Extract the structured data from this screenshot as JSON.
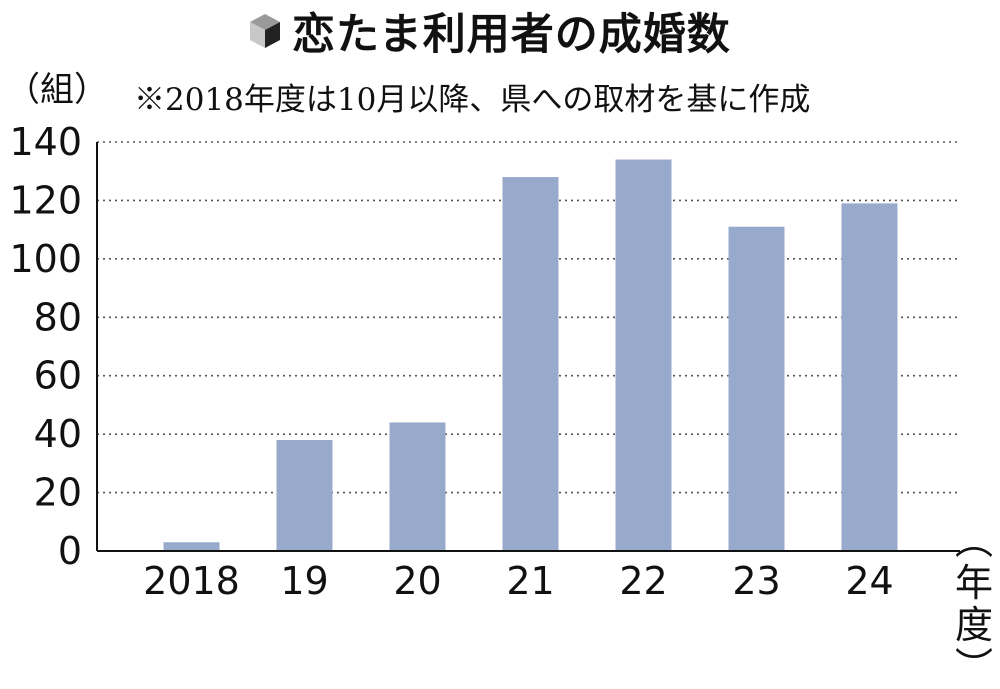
{
  "chart_data": {
    "type": "bar",
    "title": "恋たま利用者の成婚数",
    "subtitle": "※2018年度は10月以降、県への取材を基に作成",
    "ylabel": "（組）",
    "xlabel": "（年度）",
    "categories": [
      "2018",
      "19",
      "20",
      "21",
      "22",
      "23",
      "24"
    ],
    "values": [
      3,
      38,
      44,
      128,
      134,
      111,
      119
    ],
    "ylim": [
      0,
      140
    ],
    "yticks": [
      "0",
      "20",
      "40",
      "60",
      "80",
      "100",
      "120",
      "140"
    ],
    "grid": true,
    "bar_color": "#98aacb",
    "title_icon": "cube-icon"
  }
}
